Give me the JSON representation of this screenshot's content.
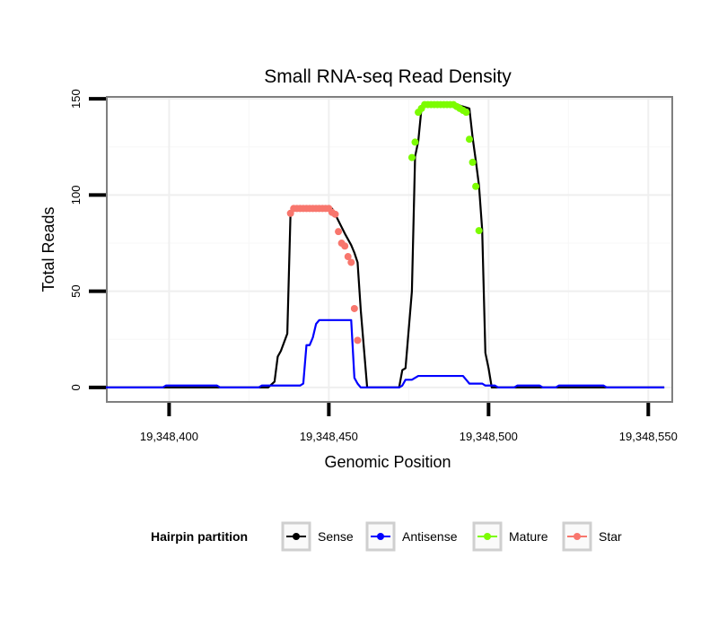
{
  "chart_data": {
    "type": "line",
    "title": "Small RNA-seq Read Density",
    "xlabel": "Genomic Position",
    "ylabel": "Total Reads",
    "xlim": [
      19348380.5,
      19348557.5
    ],
    "ylim": [
      -7.5,
      151
    ],
    "x_ticks": [
      {
        "value": 19348400,
        "label": "19,348,400"
      },
      {
        "value": 19348450,
        "label": "19,348,450"
      },
      {
        "value": 19348500,
        "label": "19,348,500"
      },
      {
        "value": 19348550,
        "label": "19,348,550"
      }
    ],
    "y_ticks": [
      {
        "value": 0,
        "label": "0"
      },
      {
        "value": 50,
        "label": "50"
      },
      {
        "value": 100,
        "label": "100"
      },
      {
        "value": 150,
        "label": "150"
      }
    ],
    "grid": true,
    "legend": {
      "title": "Hairpin partition",
      "position": "bottom",
      "entries": [
        {
          "name": "Sense",
          "color": "#000000"
        },
        {
          "name": "Antisense",
          "color": "#0000ff"
        },
        {
          "name": "Mature",
          "color": "#7cfc00"
        },
        {
          "name": "Star",
          "color": "#f8766d"
        }
      ]
    },
    "series": [
      {
        "name": "Sense",
        "color": "#000000",
        "points": [
          [
            19348380,
            0
          ],
          [
            19348431,
            0
          ],
          [
            19348433,
            3
          ],
          [
            19348434,
            16
          ],
          [
            19348435,
            19
          ],
          [
            19348437,
            28
          ],
          [
            19348438,
            90
          ],
          [
            19348439,
            93
          ],
          [
            19348451,
            93
          ],
          [
            19348452,
            90
          ],
          [
            19348455,
            80
          ],
          [
            19348457,
            74
          ],
          [
            19348458,
            70
          ],
          [
            19348459,
            65
          ],
          [
            19348460,
            40
          ],
          [
            19348461,
            20
          ],
          [
            19348462,
            0
          ],
          [
            19348472,
            0
          ],
          [
            19348473,
            9
          ],
          [
            19348474,
            10
          ],
          [
            19348475,
            30
          ],
          [
            19348476,
            50
          ],
          [
            19348477,
            120
          ],
          [
            19348478,
            128
          ],
          [
            19348479,
            145
          ],
          [
            19348480,
            147
          ],
          [
            19348490,
            147
          ],
          [
            19348494,
            145
          ],
          [
            19348495,
            130
          ],
          [
            19348496,
            118
          ],
          [
            19348497,
            105
          ],
          [
            19348498,
            82
          ],
          [
            19348499,
            18
          ],
          [
            19348500,
            10
          ],
          [
            19348501,
            0
          ],
          [
            19348555,
            0
          ]
        ]
      },
      {
        "name": "Antisense",
        "color": "#0000ff",
        "points": [
          [
            19348380,
            0
          ],
          [
            19348398,
            0
          ],
          [
            19348399,
            1
          ],
          [
            19348415,
            1
          ],
          [
            19348416,
            0
          ],
          [
            19348428,
            0
          ],
          [
            19348429,
            1
          ],
          [
            19348441,
            1
          ],
          [
            19348442,
            2
          ],
          [
            19348443,
            22
          ],
          [
            19348444,
            22
          ],
          [
            19348445,
            26
          ],
          [
            19348446,
            33
          ],
          [
            19348447,
            35
          ],
          [
            19348457,
            35
          ],
          [
            19348458,
            5
          ],
          [
            19348459,
            2
          ],
          [
            19348460,
            0
          ],
          [
            19348472,
            0
          ],
          [
            19348473,
            1
          ],
          [
            19348474,
            4
          ],
          [
            19348475,
            4
          ],
          [
            19348476,
            4
          ],
          [
            19348477,
            5
          ],
          [
            19348478,
            6
          ],
          [
            19348492,
            6
          ],
          [
            19348493,
            4
          ],
          [
            19348494,
            2
          ],
          [
            19348498,
            2
          ],
          [
            19348499,
            1
          ],
          [
            19348502,
            1
          ],
          [
            19348503,
            0
          ],
          [
            19348508,
            0
          ],
          [
            19348509,
            1
          ],
          [
            19348516,
            1
          ],
          [
            19348517,
            0
          ],
          [
            19348521,
            0
          ],
          [
            19348522,
            1
          ],
          [
            19348536,
            1
          ],
          [
            19348537,
            0
          ],
          [
            19348555,
            0
          ]
        ]
      },
      {
        "name": "Mature",
        "color": "#7cfc00",
        "points": [
          [
            19348476,
            119.5
          ],
          [
            19348477,
            127.5
          ],
          [
            19348478,
            143
          ],
          [
            19348479,
            145
          ],
          [
            19348480,
            147
          ],
          [
            19348481,
            147
          ],
          [
            19348482,
            147
          ],
          [
            19348483,
            147
          ],
          [
            19348484,
            147
          ],
          [
            19348485,
            147
          ],
          [
            19348486,
            147
          ],
          [
            19348487,
            147
          ],
          [
            19348488,
            147
          ],
          [
            19348489,
            147
          ],
          [
            19348490,
            146
          ],
          [
            19348491,
            145
          ],
          [
            19348492,
            144
          ],
          [
            19348493,
            143
          ],
          [
            19348494,
            129
          ],
          [
            19348495,
            117
          ],
          [
            19348496,
            104.5
          ],
          [
            19348497,
            81.5
          ]
        ]
      },
      {
        "name": "Star",
        "color": "#f8766d",
        "points": [
          [
            19348438,
            90.5
          ],
          [
            19348439,
            93
          ],
          [
            19348440,
            93
          ],
          [
            19348441,
            93
          ],
          [
            19348442,
            93
          ],
          [
            19348443,
            93
          ],
          [
            19348444,
            93
          ],
          [
            19348445,
            93
          ],
          [
            19348446,
            93
          ],
          [
            19348447,
            93
          ],
          [
            19348448,
            93
          ],
          [
            19348449,
            93
          ],
          [
            19348450,
            93
          ],
          [
            19348451,
            91
          ],
          [
            19348452,
            90
          ],
          [
            19348453,
            81
          ],
          [
            19348454,
            75
          ],
          [
            19348455,
            73.5
          ],
          [
            19348456,
            68
          ],
          [
            19348457,
            65
          ],
          [
            19348458,
            41
          ],
          [
            19348459,
            24.5
          ]
        ]
      }
    ]
  }
}
